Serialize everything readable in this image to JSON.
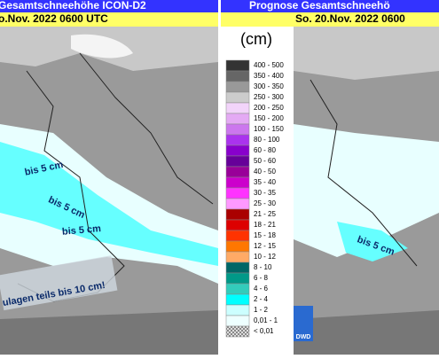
{
  "left_panel": {
    "title": "Gesamtschneehöhe ICON-D2",
    "date": "o.Nov. 2022 0600 UTC",
    "annotations": [
      "bis 5 cm",
      "bis 5 cm",
      "bis 5 cm",
      "ulagen teils bis 10 cm!"
    ]
  },
  "right_panel": {
    "title": "Prognose Gesamtschneehö",
    "date": "So. 20.Nov. 2022 0600",
    "annotations": [
      "bis 5 cm"
    ],
    "logo": "DWD"
  },
  "legend": {
    "unit": "(cm)",
    "items": [
      {
        "label": "400 - 500",
        "color": "#333333"
      },
      {
        "label": "350 - 400",
        "color": "#666666"
      },
      {
        "label": "300 - 350",
        "color": "#999999"
      },
      {
        "label": "250 - 300",
        "color": "#cccccc"
      },
      {
        "label": "200 - 250",
        "color": "#f2d4fa"
      },
      {
        "label": "150 - 200",
        "color": "#e4aaf4"
      },
      {
        "label": "100 - 150",
        "color": "#cc77ee"
      },
      {
        "label": "80 - 100",
        "color": "#aa33ee"
      },
      {
        "label": "60 - 80",
        "color": "#8800cc"
      },
      {
        "label": "50 - 60",
        "color": "#660099"
      },
      {
        "label": "40 - 50",
        "color": "#990099"
      },
      {
        "label": "35 - 40",
        "color": "#cc00cc"
      },
      {
        "label": "30 - 35",
        "color": "#ff33ff"
      },
      {
        "label": "25 - 30",
        "color": "#ff99ff"
      },
      {
        "label": "21 - 25",
        "color": "#aa0000"
      },
      {
        "label": "18 - 21",
        "color": "#dd0000"
      },
      {
        "label": "15 - 18",
        "color": "#ff3300"
      },
      {
        "label": "12 - 15",
        "color": "#ff7700"
      },
      {
        "label": "10 - 12",
        "color": "#ffaa66"
      },
      {
        "label": "8 - 10",
        "color": "#006666"
      },
      {
        "label": "6 - 8",
        "color": "#009988"
      },
      {
        "label": "4 - 6",
        "color": "#33ccbb"
      },
      {
        "label": "2 - 4",
        "color": "#00ffff"
      },
      {
        "label": "1 - 2",
        "color": "#ccffff"
      },
      {
        "label": "0,01 - 1",
        "color": "#eeffff"
      },
      {
        "label": "< 0,01",
        "color": "#aaaaaa"
      }
    ]
  }
}
